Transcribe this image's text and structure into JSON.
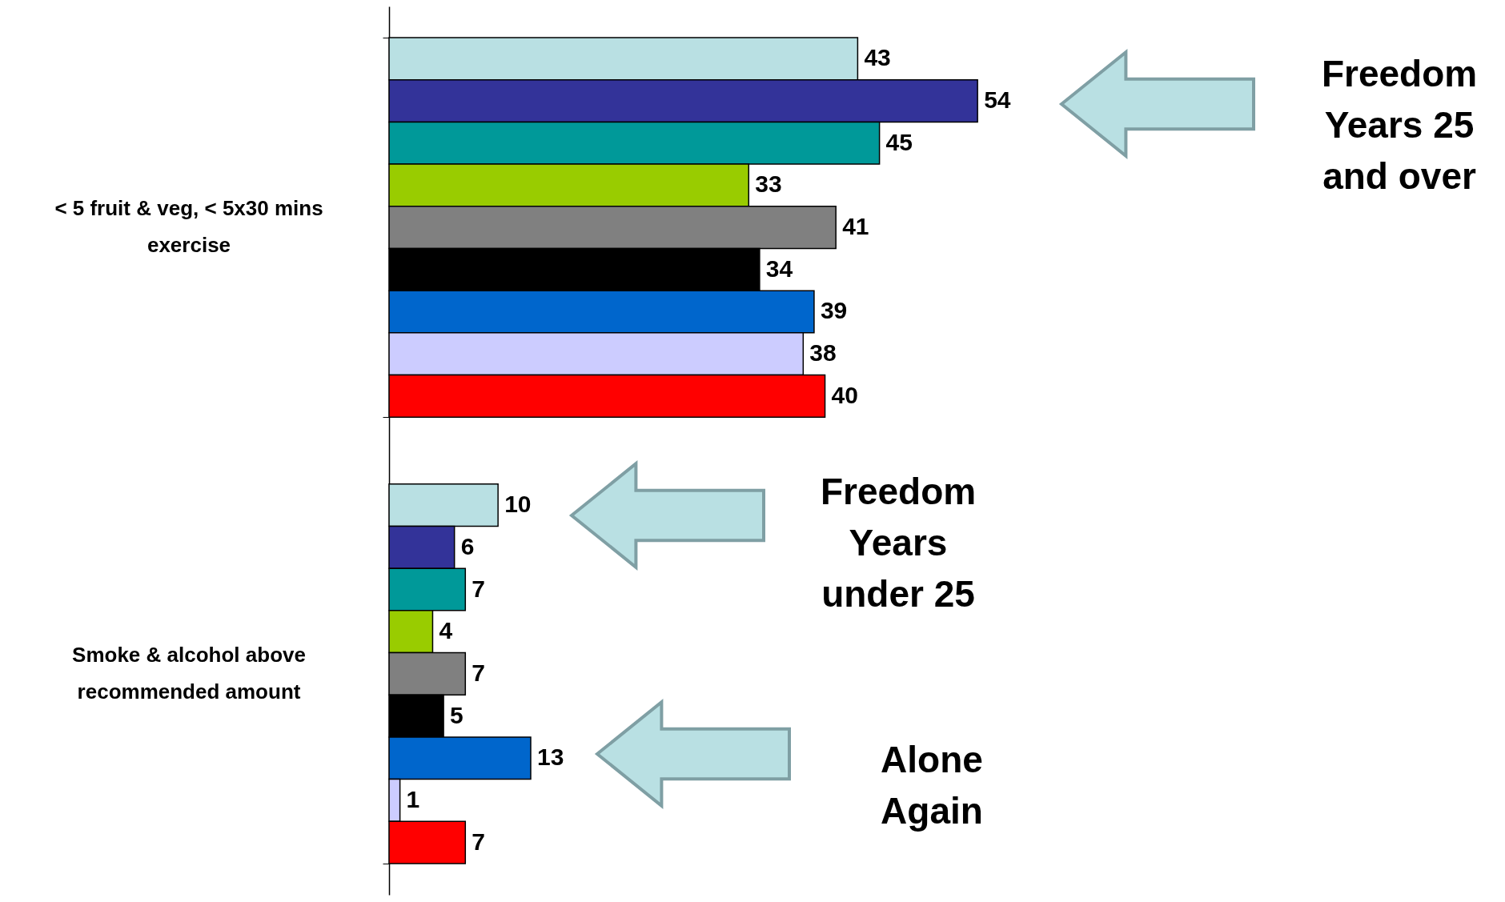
{
  "chart_data": {
    "type": "bar",
    "orientation": "horizontal",
    "data_labels": true,
    "grid": false,
    "categories": [
      "< 5 fruit & veg, < 5x30 mins exercise",
      "Smoke & alcohol above recommended amount"
    ],
    "series": [
      {
        "color": "#b9e0e3",
        "values": [
          43,
          10
        ]
      },
      {
        "color": "#333399",
        "values": [
          54,
          6
        ]
      },
      {
        "color": "#009999",
        "values": [
          45,
          7
        ]
      },
      {
        "color": "#99cc00",
        "values": [
          33,
          4
        ]
      },
      {
        "color": "#808080",
        "values": [
          41,
          7
        ]
      },
      {
        "color": "#000000",
        "values": [
          34,
          5
        ]
      },
      {
        "color": "#0066cc",
        "values": [
          39,
          13
        ]
      },
      {
        "color": "#ccccff",
        "values": [
          38,
          1
        ]
      },
      {
        "color": "#ff0000",
        "values": [
          40,
          7
        ]
      }
    ],
    "annotations": [
      "Freedom Years 25 and over",
      "Freedom Years under 25",
      "Alone Again"
    ]
  }
}
